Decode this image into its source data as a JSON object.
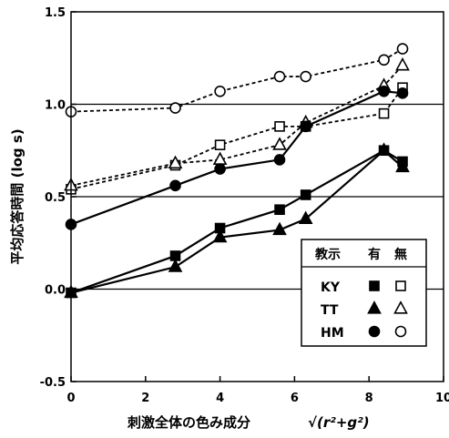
{
  "chart_data": {
    "type": "line",
    "title": "",
    "xlabel": "刺激全体の色み成分",
    "xlabel_formula": "√(r²+g²)",
    "ylabel": "平均応答時間 (log s)",
    "xlim": [
      0,
      10
    ],
    "ylim": [
      -0.5,
      1.5
    ],
    "xticks": [
      "0",
      "2",
      "4",
      "6",
      "8",
      "10"
    ],
    "yticks": [
      "-0.5",
      "0.0",
      "0.5",
      "1.0",
      "1.5"
    ],
    "grid": "horizontal lines at 0.5 and 1.0",
    "legend": {
      "placement": "bottom-right",
      "header_label": "教示",
      "header_with": "有",
      "header_without": "無",
      "rows": [
        {
          "label": "KY",
          "filled": "filled-square",
          "open": "open-square"
        },
        {
          "label": "TT",
          "filled": "filled-triangle",
          "open": "open-triangle"
        },
        {
          "label": "HM",
          "filled": "filled-circle",
          "open": "open-circle"
        }
      ]
    },
    "series": [
      {
        "subject": "KY",
        "instruction": "with",
        "marker": "square",
        "filled": true,
        "dashed": false,
        "x": [
          0,
          2.8,
          4.0,
          5.6,
          6.3,
          8.4,
          8.9
        ],
        "y": [
          -0.02,
          0.18,
          0.33,
          0.43,
          0.51,
          0.75,
          0.69
        ]
      },
      {
        "subject": "KY",
        "instruction": "without",
        "marker": "square",
        "filled": false,
        "dashed": true,
        "x": [
          0,
          2.8,
          4.0,
          5.6,
          6.3,
          8.4,
          8.9
        ],
        "y": [
          0.54,
          0.67,
          0.78,
          0.88,
          0.88,
          0.95,
          1.09
        ]
      },
      {
        "subject": "TT",
        "instruction": "with",
        "marker": "triangle",
        "filled": true,
        "dashed": false,
        "x": [
          0,
          2.8,
          4.0,
          5.6,
          6.3,
          8.4,
          8.9
        ],
        "y": [
          -0.02,
          0.12,
          0.28,
          0.32,
          0.38,
          0.75,
          0.66
        ]
      },
      {
        "subject": "TT",
        "instruction": "without",
        "marker": "triangle",
        "filled": false,
        "dashed": true,
        "x": [
          0,
          2.8,
          4.0,
          5.6,
          6.3,
          8.4,
          8.9
        ],
        "y": [
          0.56,
          0.68,
          0.7,
          0.78,
          0.9,
          1.1,
          1.21
        ]
      },
      {
        "subject": "HM",
        "instruction": "with",
        "marker": "circle",
        "filled": true,
        "dashed": false,
        "x": [
          0,
          2.8,
          4.0,
          5.6,
          6.3,
          8.4,
          8.9
        ],
        "y": [
          0.35,
          0.56,
          0.65,
          0.7,
          0.88,
          1.07,
          1.06
        ]
      },
      {
        "subject": "HM",
        "instruction": "without",
        "marker": "circle",
        "filled": false,
        "dashed": true,
        "x": [
          0,
          2.8,
          4.0,
          5.6,
          6.3,
          8.4,
          8.9
        ],
        "y": [
          0.96,
          0.98,
          1.07,
          1.15,
          1.15,
          1.24,
          1.3
        ]
      }
    ]
  }
}
